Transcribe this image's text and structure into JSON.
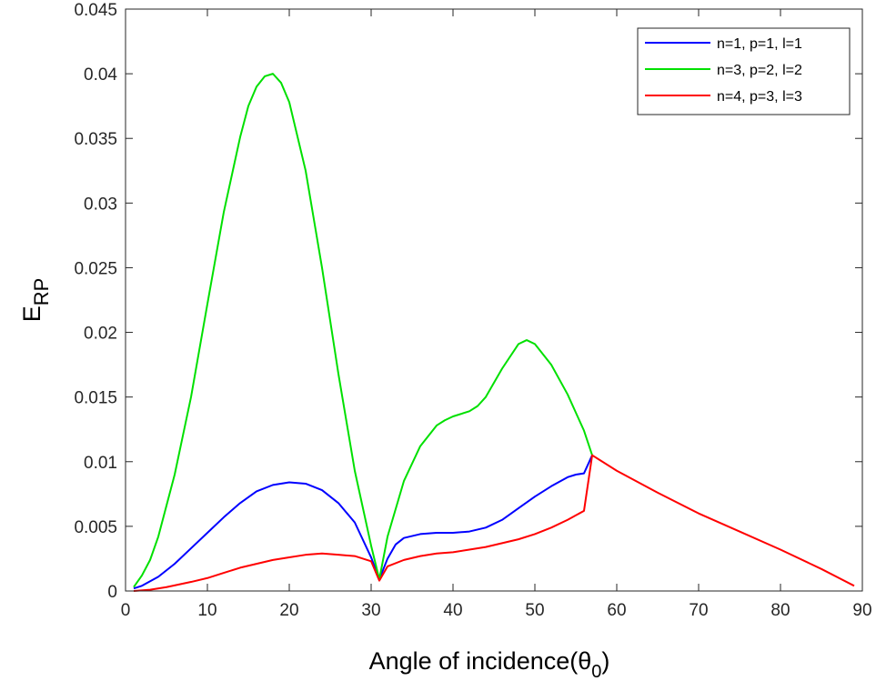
{
  "chart_data": {
    "type": "line",
    "xlabel": "Angle of incidence(θ",
    "xlabel_sub": "0",
    "xlabel_close": ")",
    "ylabel": "E",
    "ylabel_sub": "RP",
    "xlim": [
      0,
      90
    ],
    "ylim": [
      0,
      0.045
    ],
    "xticks": [
      "0",
      "10",
      "20",
      "30",
      "40",
      "50",
      "60",
      "70",
      "80",
      "90"
    ],
    "yticks": [
      "0",
      "0.005",
      "0.01",
      "0.015",
      "0.02",
      "0.025",
      "0.03",
      "0.035",
      "0.04",
      "0.045"
    ],
    "grid": false,
    "legend_position": "top-right",
    "series": [
      {
        "name": "n=1, p=1, l=1",
        "color": "#0000ff",
        "x": [
          1,
          2,
          4,
          6,
          8,
          10,
          12,
          14,
          16,
          18,
          20,
          22,
          24,
          26,
          28,
          30,
          31,
          32,
          33,
          34,
          36,
          38,
          40,
          42,
          44,
          46,
          48,
          50,
          52,
          54,
          55,
          56,
          57
        ],
        "y": [
          0.0002,
          0.0004,
          0.0011,
          0.0021,
          0.0033,
          0.0045,
          0.0057,
          0.0068,
          0.0077,
          0.0082,
          0.0084,
          0.0083,
          0.0078,
          0.0068,
          0.0053,
          0.0026,
          0.0009,
          0.0025,
          0.0036,
          0.0041,
          0.0044,
          0.0045,
          0.0045,
          0.0046,
          0.0049,
          0.0055,
          0.0064,
          0.0073,
          0.0081,
          0.0088,
          0.009,
          0.0091,
          0.0105
        ]
      },
      {
        "name": "n=3, p=2, l=2",
        "color": "#00e000",
        "x": [
          1,
          2,
          3,
          4,
          6,
          8,
          10,
          12,
          14,
          15,
          16,
          17,
          18,
          19,
          20,
          22,
          24,
          26,
          28,
          30,
          31,
          32,
          34,
          36,
          38,
          39,
          40,
          42,
          43,
          44,
          46,
          48,
          49,
          50,
          52,
          54,
          56,
          57
        ],
        "y": [
          0.0003,
          0.0012,
          0.0024,
          0.0042,
          0.009,
          0.015,
          0.0222,
          0.0293,
          0.0351,
          0.0375,
          0.039,
          0.0398,
          0.04,
          0.0393,
          0.0378,
          0.0325,
          0.025,
          0.0168,
          0.0093,
          0.0035,
          0.0009,
          0.0042,
          0.0085,
          0.0112,
          0.0128,
          0.0132,
          0.0135,
          0.0139,
          0.0143,
          0.015,
          0.0172,
          0.0191,
          0.0194,
          0.0191,
          0.0175,
          0.0152,
          0.0124,
          0.0105
        ]
      },
      {
        "name": "n=4, p=3, l=3",
        "color": "#ff0000",
        "x": [
          1,
          3,
          5,
          8,
          10,
          12,
          14,
          16,
          18,
          20,
          22,
          24,
          26,
          28,
          30,
          31,
          32,
          34,
          36,
          38,
          40,
          42,
          44,
          46,
          48,
          50,
          52,
          54,
          56,
          57,
          58,
          60,
          65,
          70,
          75,
          80,
          85,
          89
        ],
        "y": [
          0,
          0.0001,
          0.0003,
          0.0007,
          0.001,
          0.0014,
          0.0018,
          0.0021,
          0.0024,
          0.0026,
          0.0028,
          0.0029,
          0.0028,
          0.0027,
          0.0023,
          0.0008,
          0.0019,
          0.0024,
          0.0027,
          0.0029,
          0.003,
          0.0032,
          0.0034,
          0.0037,
          0.004,
          0.0044,
          0.0049,
          0.0055,
          0.0062,
          0.0105,
          0.0101,
          0.0093,
          0.0076,
          0.006,
          0.0046,
          0.0032,
          0.0017,
          0.0004
        ]
      }
    ]
  }
}
